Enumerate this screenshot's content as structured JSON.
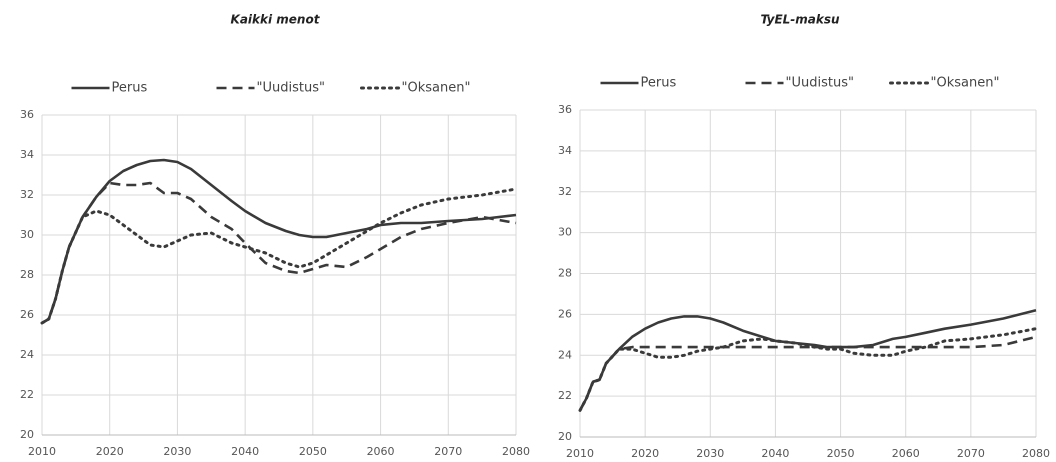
{
  "chart_data": [
    {
      "type": "line",
      "title": "Kaikki menot",
      "x": [
        2010,
        2011,
        2012,
        2013,
        2014,
        2016,
        2018,
        2020,
        2022,
        2024,
        2026,
        2028,
        2030,
        2032,
        2035,
        2038,
        2040,
        2043,
        2046,
        2048,
        2050,
        2052,
        2055,
        2058,
        2060,
        2063,
        2066,
        2070,
        2075,
        2080
      ],
      "series": [
        {
          "name": "Perus",
          "color": "#3a3a3a",
          "dash": "solid",
          "values": [
            25.6,
            25.8,
            26.8,
            28.2,
            29.4,
            30.9,
            31.9,
            32.7,
            33.2,
            33.5,
            33.7,
            33.75,
            33.65,
            33.3,
            32.5,
            31.7,
            31.2,
            30.6,
            30.2,
            30.0,
            29.9,
            29.9,
            30.1,
            30.3,
            30.5,
            30.6,
            30.6,
            30.7,
            30.8,
            31.0
          ]
        },
        {
          "name": "\"Uudistus\"",
          "color": "#3a3a3a",
          "dash": "dashed",
          "values": [
            25.6,
            25.8,
            26.8,
            28.2,
            29.4,
            30.9,
            31.9,
            32.6,
            32.5,
            32.5,
            32.6,
            32.1,
            32.1,
            31.8,
            30.9,
            30.3,
            29.6,
            28.6,
            28.2,
            28.1,
            28.3,
            28.5,
            28.4,
            28.9,
            29.3,
            29.9,
            30.3,
            30.6,
            30.9,
            30.6
          ]
        },
        {
          "name": "\"Oksanen\"",
          "color": "#3a3a3a",
          "dash": "dotted",
          "values": [
            25.6,
            25.8,
            26.8,
            28.2,
            29.4,
            30.9,
            31.2,
            31.0,
            30.5,
            30.0,
            29.5,
            29.4,
            29.7,
            30.0,
            30.1,
            29.6,
            29.4,
            29.1,
            28.6,
            28.4,
            28.6,
            29.0,
            29.6,
            30.2,
            30.6,
            31.1,
            31.5,
            31.8,
            32.0,
            32.3
          ]
        }
      ],
      "xlim": [
        2010,
        2080
      ],
      "xticks": [
        2010,
        2020,
        2030,
        2040,
        2050,
        2060,
        2070,
        2080
      ],
      "ylim": [
        20,
        36
      ],
      "yticks": [
        20,
        22,
        24,
        26,
        28,
        30,
        32,
        34,
        36
      ],
      "grid": true,
      "legend": "top"
    },
    {
      "type": "line",
      "title": "TyEL-maksu",
      "x": [
        2010,
        2011,
        2012,
        2013,
        2014,
        2016,
        2018,
        2020,
        2022,
        2024,
        2026,
        2028,
        2030,
        2032,
        2035,
        2038,
        2040,
        2043,
        2046,
        2048,
        2050,
        2052,
        2055,
        2058,
        2060,
        2063,
        2066,
        2070,
        2075,
        2080
      ],
      "series": [
        {
          "name": "Perus",
          "color": "#3a3a3a",
          "dash": "solid",
          "values": [
            21.3,
            21.9,
            22.7,
            22.8,
            23.6,
            24.3,
            24.9,
            25.3,
            25.6,
            25.8,
            25.9,
            25.9,
            25.8,
            25.6,
            25.2,
            24.9,
            24.7,
            24.6,
            24.5,
            24.4,
            24.4,
            24.4,
            24.5,
            24.8,
            24.9,
            25.1,
            25.3,
            25.5,
            25.8,
            26.2
          ]
        },
        {
          "name": "\"Uudistus\"",
          "color": "#3a3a3a",
          "dash": "dashed",
          "values": [
            21.3,
            21.9,
            22.7,
            22.8,
            23.6,
            24.3,
            24.4,
            24.4,
            24.4,
            24.4,
            24.4,
            24.4,
            24.4,
            24.4,
            24.4,
            24.4,
            24.4,
            24.4,
            24.4,
            24.4,
            24.4,
            24.4,
            24.4,
            24.4,
            24.4,
            24.4,
            24.4,
            24.4,
            24.5,
            24.9
          ]
        },
        {
          "name": "\"Oksanen\"",
          "color": "#3a3a3a",
          "dash": "dotted",
          "values": [
            21.3,
            21.9,
            22.7,
            22.8,
            23.6,
            24.3,
            24.3,
            24.1,
            23.9,
            23.9,
            24.0,
            24.2,
            24.3,
            24.4,
            24.7,
            24.8,
            24.7,
            24.6,
            24.4,
            24.3,
            24.3,
            24.1,
            24.0,
            24.0,
            24.2,
            24.4,
            24.7,
            24.8,
            25.0,
            25.3
          ]
        }
      ],
      "xlim": [
        2010,
        2080
      ],
      "xticks": [
        2010,
        2020,
        2030,
        2040,
        2050,
        2060,
        2070,
        2080
      ],
      "ylim": [
        20,
        36
      ],
      "yticks": [
        20,
        22,
        24,
        26,
        28,
        30,
        32,
        34,
        36
      ],
      "grid": true,
      "legend": "top"
    }
  ]
}
